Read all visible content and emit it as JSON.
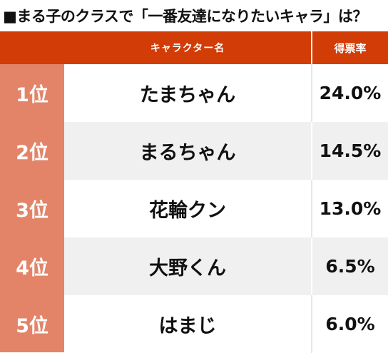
{
  "title": "■まる子のクラスで「一番友達になりたいキャラ」は？",
  "table": {
    "headers": {
      "rank": "",
      "name": "キャラクター名",
      "rate": "得票率"
    },
    "rows": [
      {
        "rank": "1位",
        "name": "たまちゃん",
        "rate": "24.0%"
      },
      {
        "rank": "2位",
        "name": "まるちゃん",
        "rate": "14.5%"
      },
      {
        "rank": "3位",
        "name": "花輪クン",
        "rate": "13.0%"
      },
      {
        "rank": "4位",
        "name": "大野くん",
        "rate": "6.5%"
      },
      {
        "rank": "5位",
        "name": "はまじ",
        "rate": "6.0%"
      }
    ]
  },
  "colors": {
    "header_bg": "#d23c06",
    "rank_col_bg": "#e38468",
    "row_alt_bg": "#f0f0f0"
  }
}
